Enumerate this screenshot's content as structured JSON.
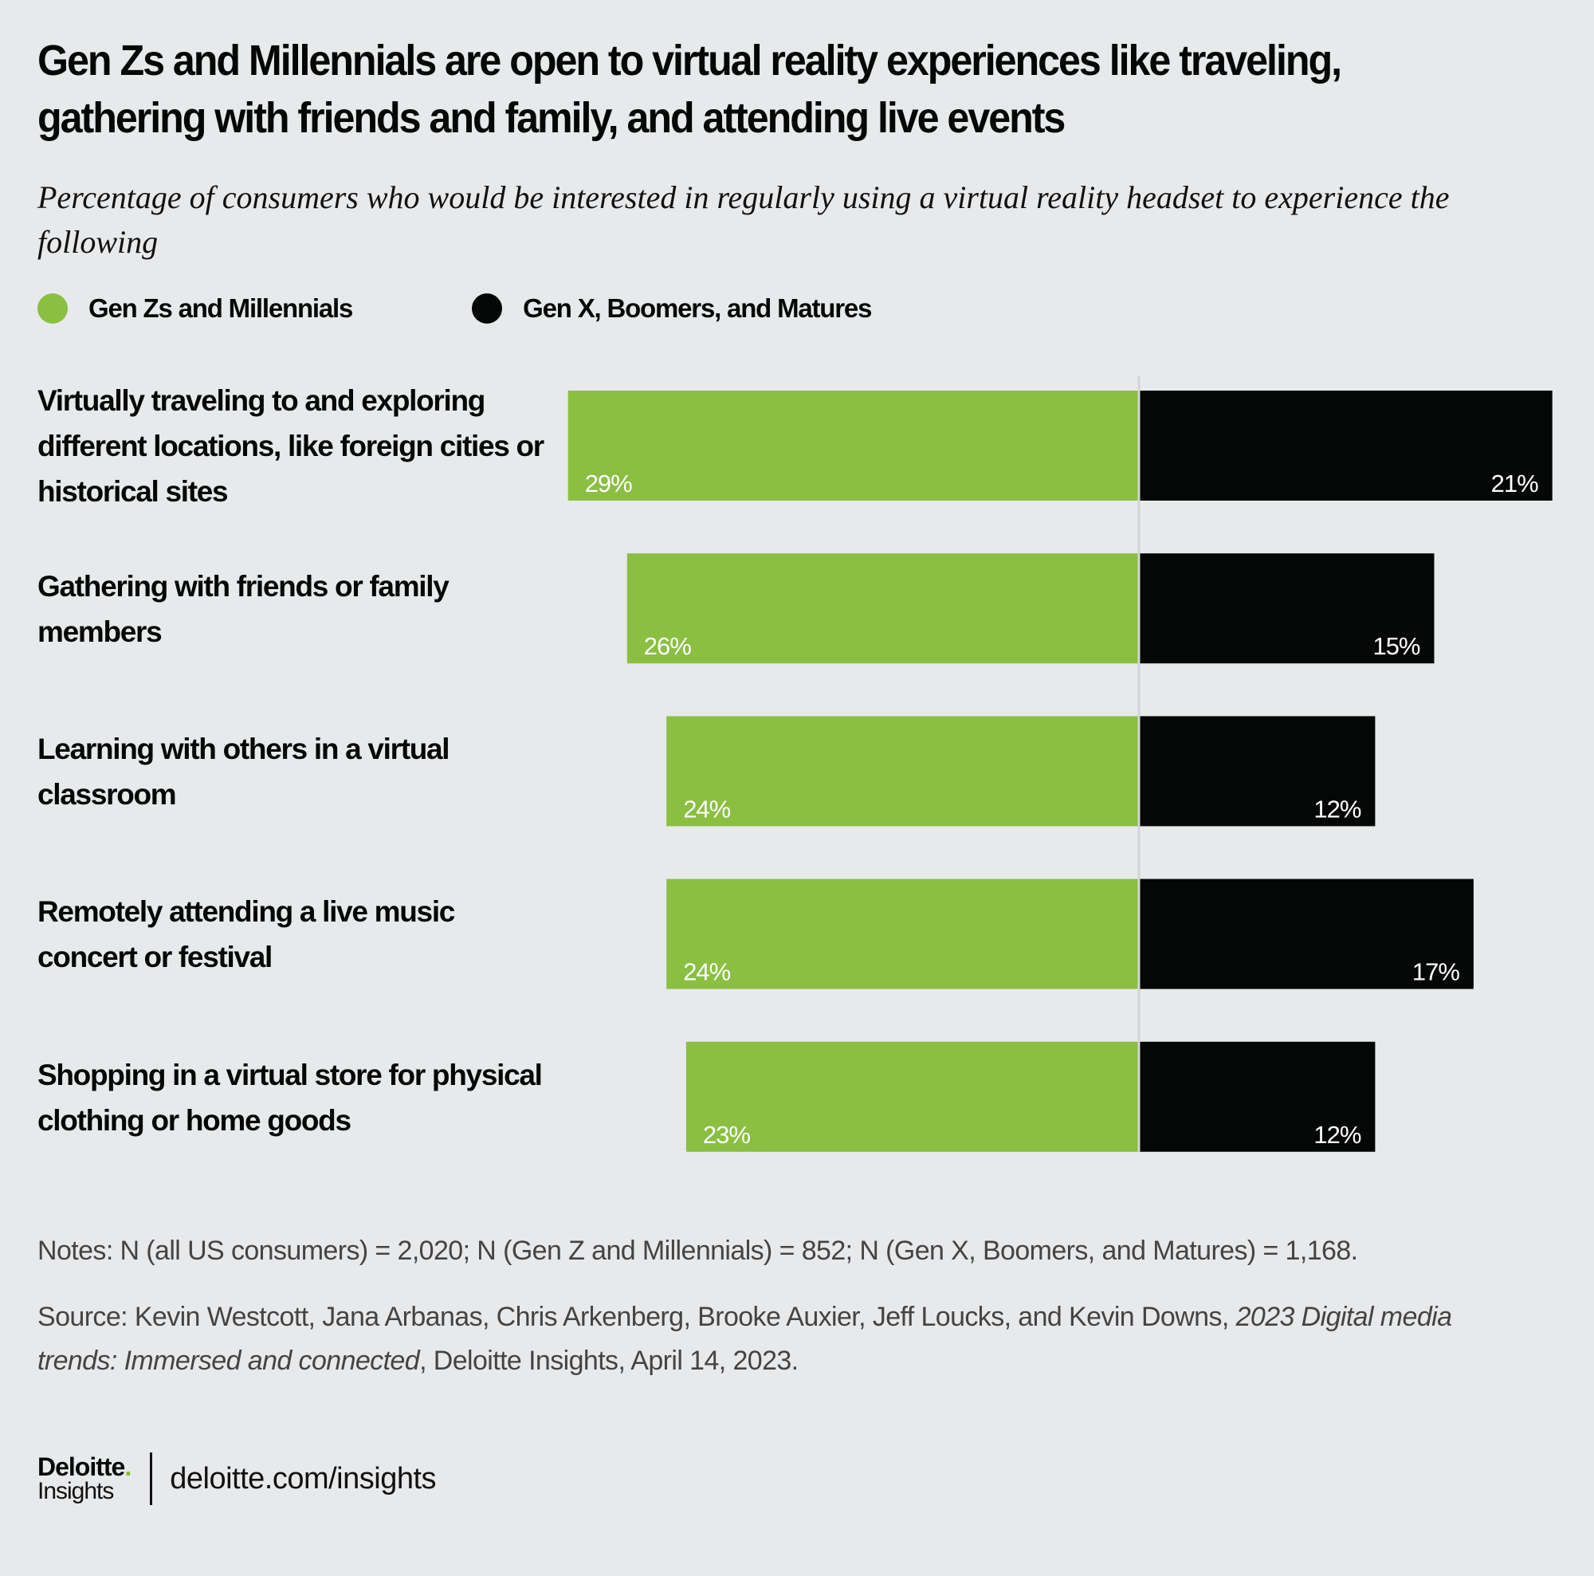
{
  "header": {
    "title": "Gen Zs and Millennials are open to virtual reality experiences like traveling, gathering with friends and family, and attending live events",
    "subtitle": "Percentage of consumers who would be interested in regularly using a virtual reality headset to experience the following"
  },
  "legend": [
    {
      "label": "Gen Zs and Millennials",
      "color": "#8abf42"
    },
    {
      "label": "Gen X, Boomers, and Matures",
      "color": "#050707"
    }
  ],
  "chart_data": {
    "type": "bar",
    "orientation": "horizontal-diverging",
    "title": "Gen Zs and Millennials are open to virtual reality experiences like traveling, gathering with friends and family, and attending live events",
    "subtitle": "Percentage of consumers who would be interested in regularly using a virtual reality headset to experience the following",
    "categories": [
      "Virtually traveling to and exploring different locations, like foreign cities or historical sites",
      "Gathering with friends or family members",
      "Learning with others in a virtual classroom",
      "Remotely attending a live music concert or festival",
      "Shopping in a virtual store for physical clothing or home goods"
    ],
    "series": [
      {
        "name": "Gen Zs and Millennials",
        "color": "#8abf42",
        "direction": "left",
        "values": [
          29,
          26,
          24,
          24,
          23
        ],
        "labels": [
          "29%",
          "26%",
          "24%",
          "24%",
          "23%"
        ]
      },
      {
        "name": "Gen X, Boomers, and Matures",
        "color": "#050707",
        "direction": "right",
        "values": [
          21,
          15,
          12,
          17,
          12
        ],
        "labels": [
          "21%",
          "15%",
          "12%",
          "17%",
          "12%"
        ]
      }
    ],
    "xlabel": "",
    "ylabel": "",
    "unit": "%",
    "grid": false,
    "legend_position": "top-left"
  },
  "footnotes": {
    "notes": "Notes: N (all US consumers) = 2,020; N (Gen Z and Millennials) = 852; N (Gen X, Boomers, and Matures) = 1,168.",
    "source_prefix": "Source: Kevin Westcott, Jana Arbanas, Chris Arkenberg, Brooke Auxier, Jeff Loucks, and Kevin Downs, ",
    "source_title": "2023 Digital media trends: Immersed and connected",
    "source_suffix": ", Deloitte Insights, April 14, 2023."
  },
  "footer": {
    "logo_main": "Deloitte",
    "logo_dot": ".",
    "logo_sub": "Insights",
    "url": "deloitte.com/insights"
  }
}
